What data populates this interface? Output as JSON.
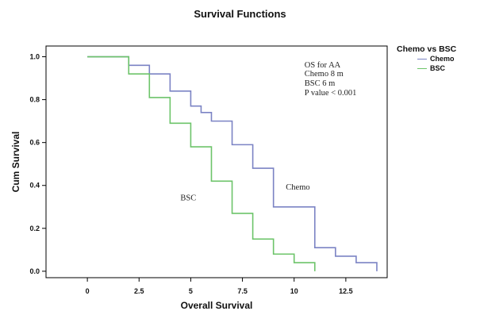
{
  "chart_data": {
    "type": "line",
    "title": "Survival Functions",
    "xlabel": "Overall Survival",
    "ylabel": "Cum Survival",
    "xlim": [
      -2,
      14.5
    ],
    "ylim": [
      -0.03,
      1.05
    ],
    "xticks": [
      "0",
      "2.5",
      "5",
      "7.5",
      "10",
      "12.5"
    ],
    "xtick_values": [
      0,
      2.5,
      5,
      7.5,
      10,
      12.5
    ],
    "yticks": [
      "0.0",
      "0.2",
      "0.4",
      "0.6",
      "0.8",
      "1.0"
    ],
    "ytick_values": [
      0.0,
      0.2,
      0.4,
      0.6,
      0.8,
      1.0
    ],
    "grid": false,
    "legend": {
      "title": "Chemo vs BSC",
      "placement": "right"
    },
    "series": [
      {
        "name": "Chemo",
        "color": "#7b83c4",
        "x": [
          0,
          2,
          3,
          4,
          5,
          5.5,
          6,
          7,
          8,
          9,
          11,
          12,
          13,
          14
        ],
        "y": [
          1.0,
          0.96,
          0.92,
          0.84,
          0.77,
          0.74,
          0.7,
          0.59,
          0.48,
          0.3,
          0.11,
          0.07,
          0.04,
          0.0
        ]
      },
      {
        "name": "BSC",
        "color": "#6dc46a",
        "x": [
          0,
          2,
          3,
          4,
          5,
          6,
          7,
          8,
          9,
          10,
          11
        ],
        "y": [
          1.0,
          0.92,
          0.81,
          0.69,
          0.58,
          0.42,
          0.27,
          0.15,
          0.08,
          0.04,
          0.0
        ]
      }
    ],
    "annotations": [
      {
        "text": "OS for AA",
        "x": 10.5,
        "y": 0.95
      },
      {
        "text": "Chemo 8 m",
        "x": 10.5,
        "y": 0.91
      },
      {
        "text": "BSC 6 m",
        "x": 10.5,
        "y": 0.865
      },
      {
        "text": "P value < 0.001",
        "x": 10.5,
        "y": 0.82
      },
      {
        "text": "Chemo",
        "x": 9.6,
        "y": 0.38
      },
      {
        "text": "BSC",
        "x": 4.5,
        "y": 0.33
      }
    ]
  }
}
